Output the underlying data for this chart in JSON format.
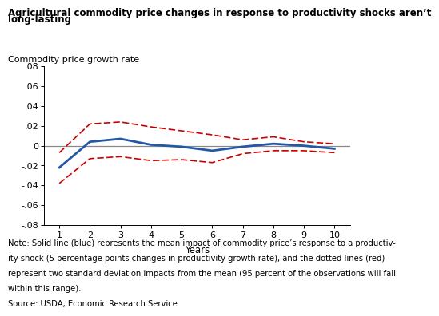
{
  "title_line1": "Agricultural commodity price changes in response to productivity shocks aren’t",
  "title_line2": "long-lasting",
  "axis_label": "Commodity price growth rate",
  "xlabel": "Years",
  "xlim": [
    0.5,
    10.5
  ],
  "ylim": [
    -0.08,
    0.08
  ],
  "yticks": [
    -0.08,
    -0.06,
    -0.04,
    -0.02,
    0.0,
    0.02,
    0.04,
    0.06,
    0.08
  ],
  "xticks": [
    1,
    2,
    3,
    4,
    5,
    6,
    7,
    8,
    9,
    10
  ],
  "years": [
    1,
    2,
    3,
    4,
    5,
    6,
    7,
    8,
    9,
    10
  ],
  "blue_mean": [
    -0.022,
    0.004,
    0.007,
    0.001,
    -0.001,
    -0.005,
    -0.001,
    0.002,
    0.0,
    -0.003
  ],
  "red_upper": [
    -0.007,
    0.022,
    0.024,
    0.019,
    0.015,
    0.011,
    0.006,
    0.009,
    0.004,
    0.002
  ],
  "red_lower": [
    -0.038,
    -0.013,
    -0.011,
    -0.015,
    -0.014,
    -0.017,
    -0.008,
    -0.005,
    -0.005,
    -0.007
  ],
  "blue_color": "#2457a4",
  "red_color": "#cc0000",
  "zero_line_color": "#888888",
  "note_line1": "Note: Solid line (blue) represents the mean impact of commodity price’s response to a productiv-",
  "note_line2": "ity shock (5 percentage points changes in productivity growth rate), and the dotted lines (red)",
  "note_line3": "represent two standard deviation impacts from the mean (95 percent of the observations will fall",
  "note_line4": "within this range).",
  "note_line5": "Source: USDA, Economic Research Service.",
  "title_fontsize": 8.5,
  "axis_label_fontsize": 8,
  "xlabel_fontsize": 8.5,
  "tick_fontsize": 8,
  "note_fontsize": 7.2
}
